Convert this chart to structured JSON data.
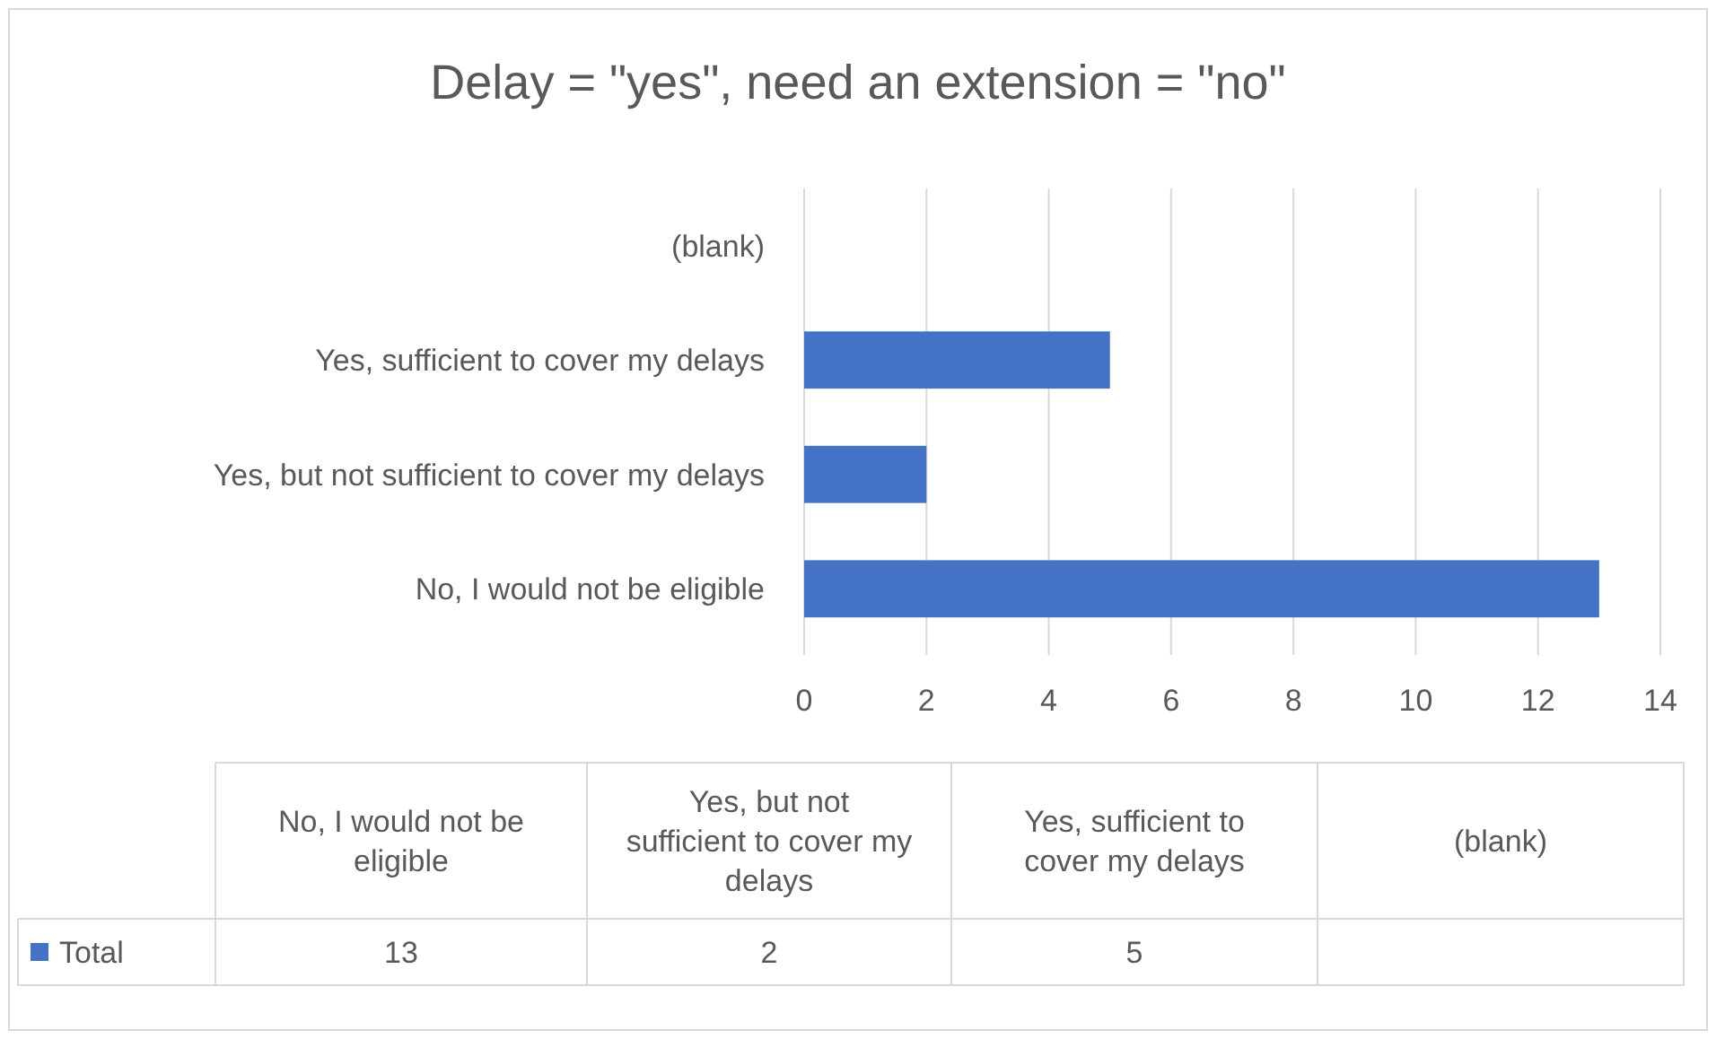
{
  "chart_data": {
    "type": "bar",
    "orientation": "horizontal",
    "title": "Delay = \"yes\", need an extension = \"no\"",
    "categories": [
      "(blank)",
      "Yes, sufficient to cover my delays",
      "Yes, but not sufficient to cover my delays",
      "No, I would not be eligible"
    ],
    "series": [
      {
        "name": "Total",
        "color": "#4472c4",
        "values": [
          null,
          5,
          2,
          13
        ]
      }
    ],
    "xlim": [
      0,
      14
    ],
    "xticks": [
      0,
      2,
      4,
      6,
      8,
      10,
      12,
      14
    ],
    "grid": "x",
    "legend": "bottom",
    "annotations": [
      "13",
      "2",
      "5"
    ]
  }
}
